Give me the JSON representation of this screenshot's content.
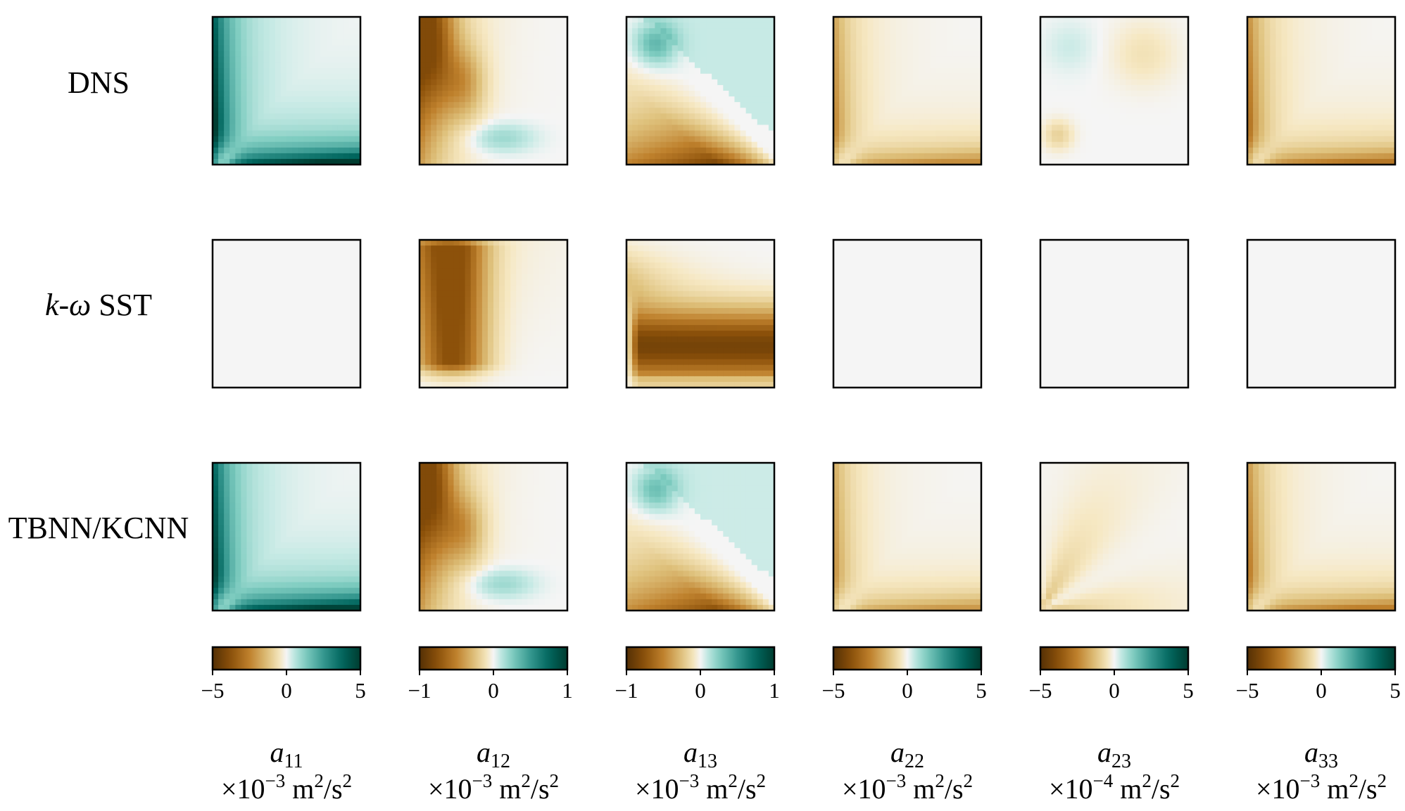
{
  "colors": {
    "negative": "#8c510a",
    "neutral": "#f5f5f5",
    "positive": "#01665e",
    "frame": "#000000"
  },
  "colormap": "BrBG",
  "rows": [
    {
      "label": "DNS"
    },
    {
      "label": "k-ω SST",
      "label_italic": "k-ω",
      "label_rest": " SST"
    },
    {
      "label": "TBNN/KCNN"
    }
  ],
  "chart_data": {
    "type": "heatmap",
    "panels": [
      {
        "component": "a",
        "subscript": "11",
        "unit": "×10",
        "unit_exponent": "−3",
        "unit_suffix": " m",
        "unit_sq": "2",
        "unit_end": "/s",
        "unit_end_sq": "2",
        "colorbar": {
          "range": [
            -5,
            5
          ],
          "ticks": [
            "−5",
            "0",
            "5"
          ]
        },
        "fields": {
          "DNS": {
            "pattern": "corner_L",
            "sign": 1,
            "magnitude": 1.0
          },
          "k-ω SST": {
            "pattern": "uniform",
            "value": 0
          },
          "TBNN/KCNN": {
            "pattern": "corner_L",
            "sign": 1,
            "magnitude": 0.95
          }
        }
      },
      {
        "component": "a",
        "subscript": "12",
        "unit": "×10",
        "unit_exponent": "−3",
        "unit_suffix": " m",
        "unit_sq": "2",
        "unit_end": "/s",
        "unit_end_sq": "2",
        "colorbar": {
          "range": [
            -1,
            1
          ],
          "ticks": [
            "−1",
            "0",
            "1"
          ]
        },
        "fields": {
          "DNS": {
            "pattern": "left_wall_with_positive_lobe",
            "sign": -1,
            "magnitude": 0.8
          },
          "k-ω SST": {
            "pattern": "left_wall_broad",
            "sign": -1,
            "magnitude": 0.75
          },
          "TBNN/KCNN": {
            "pattern": "left_wall_with_positive_lobe",
            "sign": -1,
            "magnitude": 0.8
          }
        }
      },
      {
        "component": "a",
        "subscript": "13",
        "unit": "×10",
        "unit_exponent": "−3",
        "unit_suffix": " m",
        "unit_sq": "2",
        "unit_end": "/s",
        "unit_end_sq": "2",
        "colorbar": {
          "range": [
            -1,
            1
          ],
          "ticks": [
            "−1",
            "0",
            "1"
          ]
        },
        "fields": {
          "DNS": {
            "pattern": "diagonal_split",
            "sign": -1,
            "magnitude": 1.0
          },
          "k-ω SST": {
            "pattern": "bottom_broad",
            "sign": -1,
            "magnitude": 0.85
          },
          "TBNN/KCNN": {
            "pattern": "diagonal_split",
            "sign": -1,
            "magnitude": 0.9
          }
        }
      },
      {
        "component": "a",
        "subscript": "22",
        "unit": "×10",
        "unit_exponent": "−3",
        "unit_suffix": " m",
        "unit_sq": "2",
        "unit_end": "/s",
        "unit_end_sq": "2",
        "colorbar": {
          "range": [
            -5,
            5
          ],
          "ticks": [
            "−5",
            "0",
            "5"
          ]
        },
        "fields": {
          "DNS": {
            "pattern": "corner_L",
            "sign": -1,
            "magnitude": 0.45
          },
          "k-ω SST": {
            "pattern": "uniform",
            "value": 0
          },
          "TBNN/KCNN": {
            "pattern": "corner_L",
            "sign": -1,
            "magnitude": 0.4
          }
        }
      },
      {
        "component": "a",
        "subscript": "23",
        "unit": "×10",
        "unit_exponent": "−4",
        "unit_suffix": " m",
        "unit_sq": "2",
        "unit_end": "/s",
        "unit_end_sq": "2",
        "colorbar": {
          "range": [
            -5,
            5
          ],
          "ticks": [
            "−5",
            "0",
            "5"
          ]
        },
        "fields": {
          "DNS": {
            "pattern": "weak_patchy",
            "sign": -1,
            "magnitude": 0.18
          },
          "k-ω SST": {
            "pattern": "uniform",
            "value": 0
          },
          "TBNN/KCNN": {
            "pattern": "weak_fan",
            "sign": -1,
            "magnitude": 0.22
          }
        }
      },
      {
        "component": "a",
        "subscript": "33",
        "unit": "×10",
        "unit_exponent": "−3",
        "unit_suffix": " m",
        "unit_sq": "2",
        "unit_end": "/s",
        "unit_end_sq": "2",
        "colorbar": {
          "range": [
            -5,
            5
          ],
          "ticks": [
            "−5",
            "0",
            "5"
          ]
        },
        "fields": {
          "DNS": {
            "pattern": "corner_L",
            "sign": -1,
            "magnitude": 0.55
          },
          "k-ω SST": {
            "pattern": "uniform",
            "value": 0
          },
          "TBNN/KCNN": {
            "pattern": "corner_L",
            "sign": -1,
            "magnitude": 0.5
          }
        }
      }
    ]
  }
}
